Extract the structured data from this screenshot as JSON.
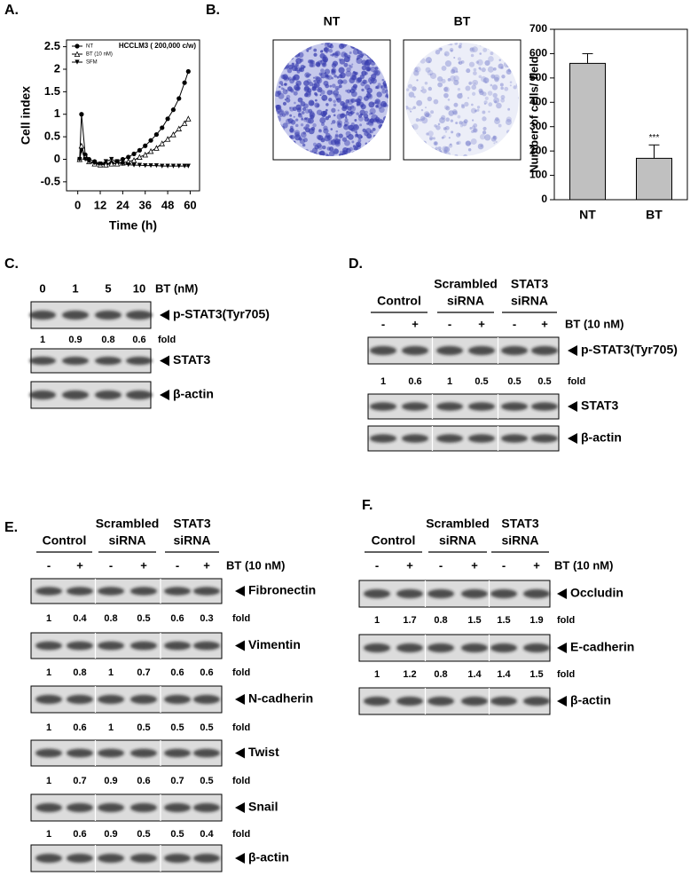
{
  "panel_labels": [
    "A.",
    "B.",
    "C.",
    "D.",
    "E.",
    "F."
  ],
  "chart_data": [
    {
      "type": "line",
      "title": "HCCLM3 ( 200,000  c/w)",
      "x_label": "Time (h)",
      "y_label": "Cell index",
      "x": [
        1,
        2,
        4,
        6,
        9,
        12,
        15,
        18,
        21,
        24,
        27,
        30,
        33,
        36,
        39,
        42,
        45,
        48,
        51,
        54,
        57,
        59
      ],
      "series": [
        {
          "name": "NT",
          "color": "#000000",
          "marker": "circle",
          "values": [
            0,
            1.0,
            0.1,
            0,
            -0.05,
            -0.1,
            -0.1,
            -0.08,
            -0.05,
            0,
            0.05,
            0.12,
            0.2,
            0.3,
            0.42,
            0.55,
            0.7,
            0.9,
            1.1,
            1.35,
            1.7,
            1.95
          ]
        },
        {
          "name": "BT (10 nM)",
          "color": "#000000",
          "marker": "triangle-open",
          "values": [
            0,
            0.3,
            0.05,
            -0.05,
            -0.1,
            -0.12,
            -0.12,
            -0.1,
            -0.1,
            -0.08,
            -0.05,
            -0.02,
            0.05,
            0.1,
            0.18,
            0.25,
            0.35,
            0.45,
            0.55,
            0.68,
            0.8,
            0.9
          ]
        },
        {
          "name": "SFM",
          "color": "#000000",
          "marker": "triangle-down",
          "values": [
            0,
            0.2,
            0,
            -0.05,
            -0.08,
            -0.1,
            -0.05,
            0,
            -0.05,
            -0.1,
            -0.12,
            -0.13,
            -0.13,
            -0.14,
            -0.14,
            -0.14,
            -0.15,
            -0.15,
            -0.15,
            -0.15,
            -0.15,
            -0.15
          ]
        }
      ],
      "xlim": [
        -6,
        65
      ],
      "xticks": [
        0,
        12,
        24,
        36,
        48,
        60
      ],
      "ylim": [
        -0.7,
        2.65
      ],
      "yticks": [
        -0.5,
        0,
        0.5,
        1,
        1.5,
        2,
        2.5
      ],
      "legend": "top-left"
    },
    {
      "type": "bar",
      "y_label": "Number of cells/ field",
      "categories": [
        "NT",
        "BT"
      ],
      "values": [
        560,
        170
      ],
      "errors": [
        40,
        55
      ],
      "color": "#c0c0c0",
      "annotation": "***",
      "ylim": [
        0,
        700
      ],
      "yticks": [
        0,
        100,
        200,
        300,
        400,
        500,
        600,
        700
      ]
    }
  ],
  "micrographs": [
    "NT",
    "BT"
  ],
  "blot_c": {
    "treatment": "BT (nM)",
    "lanes": [
      0,
      1,
      5,
      10
    ],
    "rows": [
      {
        "protein": "p-STAT3(Tyr705)",
        "fold": [
          1,
          0.9,
          0.8,
          0.6
        ],
        "fold_label": "fold"
      },
      {
        "protein": "STAT3"
      },
      {
        "protein": "β-actin"
      }
    ]
  },
  "blot_d": {
    "groups": [
      [
        "Control"
      ],
      [
        "Scrambled",
        "siRNA"
      ],
      [
        "STAT3",
        "siRNA"
      ]
    ],
    "treatment": "BT (10 nM)",
    "lanes": [
      "-",
      "+",
      "-",
      "+",
      "-",
      "+"
    ],
    "rows": [
      {
        "protein": "p-STAT3(Tyr705)",
        "fold": [
          1,
          0.6,
          1,
          0.5,
          0.5,
          0.5
        ],
        "fold_label": "fold"
      },
      {
        "protein": "STAT3"
      },
      {
        "protein": "β-actin"
      }
    ]
  },
  "blot_e": {
    "groups": [
      [
        "Control"
      ],
      [
        "Scrambled",
        "siRNA"
      ],
      [
        "STAT3",
        "siRNA"
      ]
    ],
    "treatment": "BT (10 nM)",
    "lanes": [
      "-",
      "+",
      "-",
      "+",
      "-",
      "+"
    ],
    "rows": [
      {
        "protein": "Fibronectin",
        "fold": [
          1,
          0.4,
          0.8,
          0.5,
          0.6,
          0.3
        ],
        "fold_label": "fold"
      },
      {
        "protein": "Vimentin",
        "fold": [
          1,
          0.8,
          1,
          0.7,
          0.6,
          0.6
        ],
        "fold_label": "fold"
      },
      {
        "protein": "N-cadherin",
        "fold": [
          1,
          0.6,
          1,
          0.5,
          0.5,
          0.5
        ],
        "fold_label": "fold"
      },
      {
        "protein": "Twist",
        "fold": [
          1,
          0.7,
          0.9,
          0.6,
          0.7,
          0.5
        ],
        "fold_label": "fold"
      },
      {
        "protein": "Snail",
        "fold": [
          1,
          0.6,
          0.9,
          0.5,
          0.5,
          0.4
        ],
        "fold_label": "fold"
      },
      {
        "protein": "β-actin"
      }
    ]
  },
  "blot_f": {
    "groups": [
      [
        "Control"
      ],
      [
        "Scrambled",
        "siRNA"
      ],
      [
        "STAT3",
        "siRNA"
      ]
    ],
    "treatment": "BT (10 nM)",
    "lanes": [
      "-",
      "+",
      "-",
      "+",
      "-",
      "+"
    ],
    "rows": [
      {
        "protein": "Occludin",
        "fold": [
          1,
          1.7,
          0.8,
          1.5,
          1.5,
          1.9
        ],
        "fold_label": "fold"
      },
      {
        "protein": "E-cadherin",
        "fold": [
          1,
          1.2,
          0.8,
          1.4,
          1.4,
          1.5
        ],
        "fold_label": "fold"
      },
      {
        "protein": "β-actin"
      }
    ]
  }
}
